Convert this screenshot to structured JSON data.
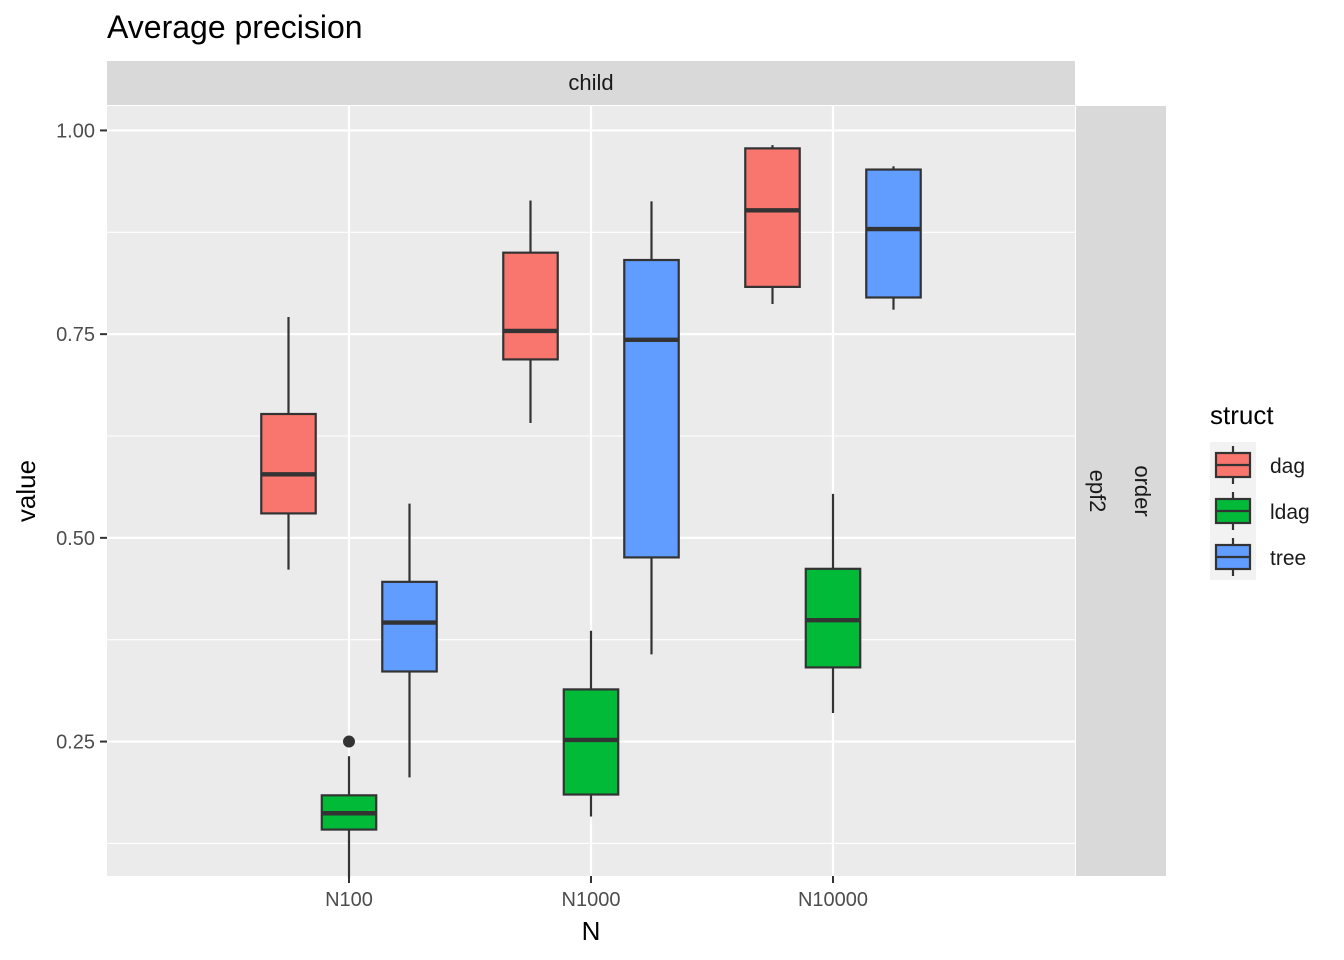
{
  "chart_data": {
    "type": "boxplot",
    "title": "Average precision",
    "xlabel": "N",
    "ylabel": "value",
    "facet_col": "child",
    "facet_row": [
      "epf2",
      "order"
    ],
    "categories": [
      "N100",
      "N1000",
      "N10000"
    ],
    "ylim": [
      0.085,
      1.03
    ],
    "y_ticks": [
      0.25,
      0.5,
      0.75,
      1.0
    ],
    "y_tick_labels": [
      "0.25",
      "0.50",
      "0.75",
      "1.00"
    ],
    "grid": true,
    "legend": {
      "title": "struct",
      "position": "right"
    },
    "series": [
      {
        "name": "dag",
        "color": "#F8766D",
        "boxes": [
          {
            "category": "N100",
            "min": 0.461,
            "q1": 0.53,
            "median": 0.578,
            "q3": 0.652,
            "max": 0.771,
            "outliers": []
          },
          {
            "category": "N1000",
            "min": 0.641,
            "q1": 0.719,
            "median": 0.754,
            "q3": 0.85,
            "max": 0.914,
            "outliers": []
          },
          {
            "category": "N10000",
            "min": 0.787,
            "q1": 0.808,
            "median": 0.902,
            "q3": 0.978,
            "max": 0.982,
            "outliers": []
          }
        ]
      },
      {
        "name": "ldag",
        "color": "#00BA38",
        "boxes": [
          {
            "category": "N100",
            "min": 0.083,
            "q1": 0.142,
            "median": 0.162,
            "q3": 0.184,
            "max": 0.232,
            "outliers": [
              0.25
            ]
          },
          {
            "category": "N1000",
            "min": 0.158,
            "q1": 0.185,
            "median": 0.252,
            "q3": 0.314,
            "max": 0.386,
            "outliers": []
          },
          {
            "category": "N10000",
            "min": 0.285,
            "q1": 0.341,
            "median": 0.399,
            "q3": 0.462,
            "max": 0.554,
            "outliers": []
          }
        ]
      },
      {
        "name": "tree",
        "color": "#619CFF",
        "boxes": [
          {
            "category": "N100",
            "min": 0.206,
            "q1": 0.336,
            "median": 0.396,
            "q3": 0.446,
            "max": 0.542,
            "outliers": []
          },
          {
            "category": "N1000",
            "min": 0.357,
            "q1": 0.476,
            "median": 0.743,
            "q3": 0.841,
            "max": 0.913,
            "outliers": []
          },
          {
            "category": "N10000",
            "min": 0.78,
            "q1": 0.795,
            "median": 0.879,
            "q3": 0.952,
            "max": 0.956,
            "outliers": []
          }
        ]
      }
    ]
  }
}
